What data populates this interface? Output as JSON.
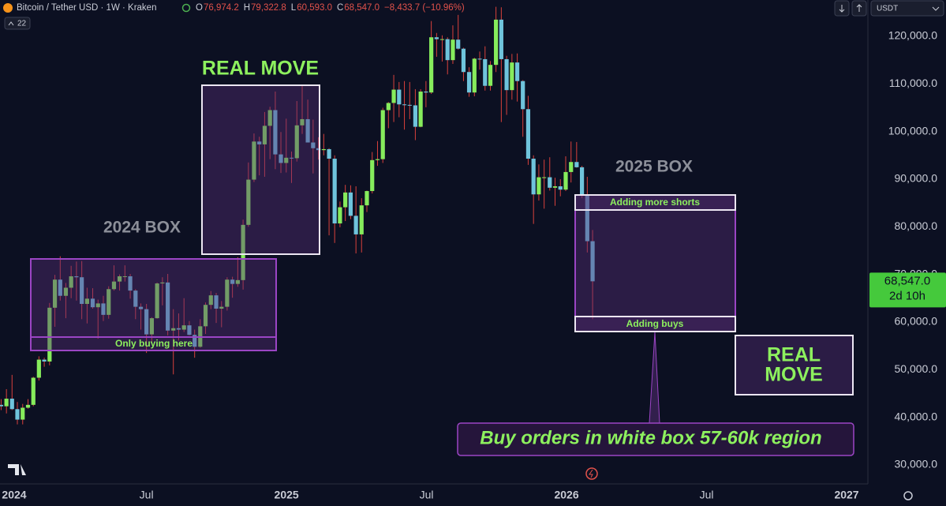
{
  "chart_data": {
    "type": "candlestick",
    "title": "Bitcoin / Tether USD · 1W · Kraken",
    "ohlc_legend": [
      {
        "key": "O",
        "text": "76,974.2"
      },
      {
        "key": "H",
        "text": "79,322.8"
      },
      {
        "key": "L",
        "text": "60,593.0"
      },
      {
        "key": "C",
        "text": "68,547.0"
      }
    ],
    "change": "−8,433.7 (−10.96%)",
    "indicator_count": 22,
    "currency": "USDT",
    "price_label": "68,547.0",
    "countdown": "2d 10h",
    "up_color": "#86ec5c",
    "down_color": "#6fc4dc",
    "wick_color": "#d9413c",
    "xlim": [
      2023.977,
      2027.076
    ],
    "ylim": [
      26000,
      127625
    ],
    "xticks": [
      2024,
      {
        "value": 2024.5,
        "label": "Jul"
      },
      2025,
      {
        "value": 2025.5,
        "label": "Jul"
      },
      2026,
      {
        "value": 2026.5,
        "label": "Jul"
      },
      2027
    ],
    "yticks": [
      {
        "value": 30000,
        "label": "30,000.0"
      },
      {
        "value": 40000,
        "label": "40,000.0"
      },
      {
        "value": 50000,
        "label": "50,000.0"
      },
      {
        "value": 60000,
        "label": "60,000.0"
      },
      {
        "value": 70000,
        "label": "70,000.0"
      },
      {
        "value": 80000,
        "label": "80,000.0"
      },
      {
        "value": 90000,
        "label": "90,000.0"
      },
      {
        "value": 100000,
        "label": "100,000.0"
      },
      {
        "value": 110000,
        "label": "110,000.0"
      },
      {
        "value": 120000,
        "label": "120,000.0"
      }
    ],
    "grid": false,
    "candles": [
      [
        2023.962,
        41400,
        44000,
        40500,
        42600
      ],
      [
        2023.981,
        42600,
        43800,
        41500,
        42300
      ],
      [
        2024.0,
        42300,
        45900,
        40800,
        43900
      ],
      [
        2024.02,
        43900,
        48900,
        41500,
        41700
      ],
      [
        2024.039,
        41700,
        43200,
        38500,
        39500
      ],
      [
        2024.058,
        39500,
        42800,
        38500,
        42000
      ],
      [
        2024.077,
        42000,
        43800,
        41800,
        42600
      ],
      [
        2024.096,
        42600,
        48500,
        42300,
        48300
      ],
      [
        2024.116,
        48300,
        52800,
        47700,
        52100
      ],
      [
        2024.135,
        52100,
        52500,
        50600,
        51700
      ],
      [
        2024.154,
        51700,
        64000,
        50900,
        63000
      ],
      [
        2024.173,
        63000,
        69900,
        59000,
        68900
      ],
      [
        2024.192,
        68900,
        73800,
        64500,
        65500
      ],
      [
        2024.212,
        65500,
        68200,
        60800,
        67200
      ],
      [
        2024.231,
        67200,
        71800,
        65000,
        69600
      ],
      [
        2024.25,
        69600,
        72700,
        64500,
        69400
      ],
      [
        2024.269,
        69400,
        72800,
        60600,
        63800
      ],
      [
        2024.288,
        63800,
        67200,
        59700,
        64900
      ],
      [
        2024.308,
        64900,
        67100,
        62800,
        63100
      ],
      [
        2024.327,
        63100,
        64700,
        56500,
        63900
      ],
      [
        2024.346,
        63900,
        65500,
        60200,
        61500
      ],
      [
        2024.365,
        61500,
        67500,
        60700,
        66900
      ],
      [
        2024.384,
        66900,
        71900,
        66600,
        68500
      ],
      [
        2024.404,
        68500,
        70000,
        66600,
        69600
      ],
      [
        2024.423,
        69600,
        71900,
        68500,
        69600
      ],
      [
        2024.442,
        69600,
        70100,
        64900,
        66600
      ],
      [
        2024.461,
        66600,
        66900,
        60600,
        63200
      ],
      [
        2024.48,
        63200,
        63900,
        58400,
        62700
      ],
      [
        2024.5,
        62700,
        63800,
        53500,
        57400
      ],
      [
        2024.519,
        57400,
        61000,
        55700,
        60800
      ],
      [
        2024.538,
        60800,
        68300,
        60700,
        68100
      ],
      [
        2024.557,
        68100,
        69400,
        63500,
        68300
      ],
      [
        2024.576,
        68300,
        70100,
        57200,
        58200
      ],
      [
        2024.596,
        58200,
        62700,
        49000,
        58700
      ],
      [
        2024.615,
        58700,
        61800,
        56100,
        58400
      ],
      [
        2024.634,
        58400,
        65000,
        57900,
        59300
      ],
      [
        2024.653,
        59300,
        60200,
        57200,
        57300
      ],
      [
        2024.672,
        57300,
        58400,
        52500,
        54800
      ],
      [
        2024.692,
        54800,
        60600,
        54600,
        59100
      ],
      [
        2024.711,
        59100,
        64100,
        57500,
        63600
      ],
      [
        2024.73,
        63600,
        66500,
        62700,
        65600
      ],
      [
        2024.749,
        65600,
        66100,
        59800,
        62800
      ],
      [
        2024.768,
        62800,
        64400,
        58900,
        63200
      ],
      [
        2024.788,
        63200,
        69400,
        62400,
        68900
      ],
      [
        2024.807,
        68900,
        69500,
        65100,
        68000
      ],
      [
        2024.826,
        68000,
        73600,
        67400,
        68800
      ],
      [
        2024.845,
        68800,
        81500,
        66800,
        80400
      ],
      [
        2024.864,
        80400,
        93500,
        80000,
        89900
      ],
      [
        2024.884,
        89900,
        99600,
        89400,
        97900
      ],
      [
        2024.903,
        97900,
        98900,
        90800,
        97300
      ],
      [
        2024.922,
        97300,
        104100,
        90500,
        101200
      ],
      [
        2024.941,
        101200,
        105200,
        94200,
        104500
      ],
      [
        2024.96,
        104500,
        108400,
        92100,
        95200
      ],
      [
        2024.98,
        95200,
        99900,
        91300,
        93400
      ],
      [
        2024.999,
        93400,
        102700,
        91400,
        94500
      ],
      [
        2025.018,
        94500,
        95800,
        89200,
        94400
      ],
      [
        2025.037,
        94400,
        106400,
        93700,
        101300
      ],
      [
        2025.056,
        101300,
        109600,
        99500,
        102600
      ],
      [
        2025.076,
        102600,
        106700,
        97700,
        97700
      ],
      [
        2025.095,
        97700,
        102500,
        91200,
        96500
      ],
      [
        2025.114,
        96500,
        98800,
        94100,
        96100
      ],
      [
        2025.133,
        96100,
        99500,
        95000,
        96300
      ],
      [
        2025.152,
        96300,
        96500,
        78200,
        94300
      ],
      [
        2025.172,
        94300,
        95000,
        76600,
        80700
      ],
      [
        2025.191,
        80700,
        85300,
        79900,
        84100
      ],
      [
        2025.21,
        84100,
        88800,
        81200,
        87200
      ],
      [
        2025.229,
        87200,
        88700,
        81600,
        82300
      ],
      [
        2025.248,
        82300,
        88500,
        74400,
        78400
      ],
      [
        2025.268,
        78400,
        86000,
        74600,
        84500
      ],
      [
        2025.287,
        84500,
        87600,
        83100,
        87500
      ],
      [
        2025.306,
        87500,
        95700,
        87000,
        94000
      ],
      [
        2025.325,
        94000,
        98000,
        92800,
        94200
      ],
      [
        2025.344,
        94200,
        105000,
        93400,
        104500
      ],
      [
        2025.364,
        104500,
        106200,
        100700,
        106000
      ],
      [
        2025.383,
        106000,
        111900,
        102000,
        108800
      ],
      [
        2025.402,
        108800,
        110400,
        103000,
        105700
      ],
      [
        2025.421,
        105700,
        110600,
        100400,
        105600
      ],
      [
        2025.44,
        105600,
        110400,
        102600,
        105500
      ],
      [
        2025.46,
        105500,
        108900,
        98200,
        101000
      ],
      [
        2025.479,
        101000,
        108900,
        100900,
        108400
      ],
      [
        2025.498,
        108400,
        110600,
        105100,
        108200
      ],
      [
        2025.517,
        108200,
        123200,
        107900,
        119800
      ],
      [
        2025.536,
        119800,
        120700,
        115700,
        119400
      ],
      [
        2025.556,
        119400,
        120200,
        114700,
        119400
      ],
      [
        2025.575,
        119400,
        119800,
        112000,
        115000
      ],
      [
        2025.594,
        115000,
        122300,
        114200,
        119300
      ],
      [
        2025.613,
        119300,
        124500,
        117200,
        117400
      ],
      [
        2025.632,
        117400,
        117600,
        110600,
        112500
      ],
      [
        2025.652,
        112500,
        113500,
        107300,
        108200
      ],
      [
        2025.671,
        108200,
        115500,
        107400,
        115300
      ],
      [
        2025.69,
        115300,
        116800,
        113000,
        115200
      ],
      [
        2025.709,
        115200,
        117900,
        108600,
        109600
      ],
      [
        2025.728,
        109600,
        114800,
        108600,
        114000
      ],
      [
        2025.748,
        114000,
        126200,
        112500,
        123500
      ],
      [
        2025.767,
        123500,
        126100,
        102000,
        115200
      ],
      [
        2025.786,
        115200,
        115900,
        103500,
        108700
      ],
      [
        2025.805,
        108700,
        116300,
        106700,
        114500
      ],
      [
        2025.824,
        114500,
        116400,
        106300,
        110600
      ],
      [
        2025.844,
        110600,
        110800,
        98900,
        104700
      ],
      [
        2025.863,
        104700,
        107500,
        93000,
        94300
      ],
      [
        2025.882,
        94300,
        95000,
        80600,
        86800
      ],
      [
        2025.901,
        86800,
        93100,
        85500,
        90400
      ],
      [
        2025.92,
        90400,
        94100,
        83800,
        90400
      ],
      [
        2025.94,
        90400,
        94600,
        87600,
        88200
      ],
      [
        2025.959,
        88200,
        90300,
        84400,
        88500
      ],
      [
        2025.978,
        88500,
        90000,
        86400,
        87800
      ],
      [
        2025.997,
        87800,
        94800,
        87500,
        91500
      ],
      [
        2026.016,
        91500,
        97900,
        89300,
        93600
      ],
      [
        2026.036,
        93600,
        97800,
        92400,
        92500
      ],
      [
        2026.055,
        92500,
        92800,
        86000,
        86700
      ],
      [
        2026.074,
        86700,
        90500,
        74600,
        76974.2
      ],
      [
        2026.093,
        76974.2,
        79322.8,
        60593,
        68547
      ]
    ],
    "annotations": {
      "real_move_top": "REAL MOVE",
      "box_2024": "2024 BOX",
      "box_2025": "2025 BOX",
      "only_buying": "Only buying here",
      "adding_shorts": "Adding more shorts",
      "adding_buys": "Adding buys",
      "real_move_right": [
        "REAL",
        "MOVE"
      ],
      "callout": "Buy orders in white box 57-60k region"
    }
  }
}
